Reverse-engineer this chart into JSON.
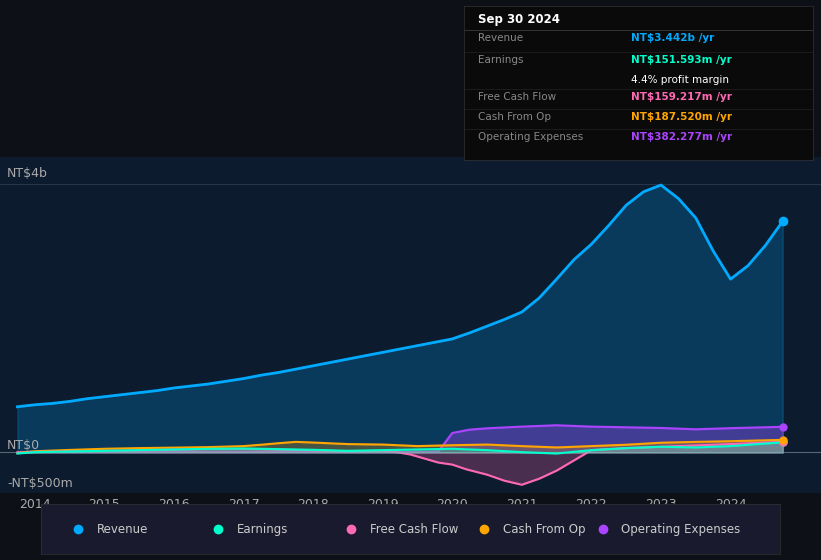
{
  "bg_color": "#0d1117",
  "plot_bg_color": "#0d1b2e",
  "y_label_top": "NT$4b",
  "y_label_zero": "NT$0",
  "y_label_neg": "-NT$500m",
  "x_ticks": [
    2014,
    2015,
    2016,
    2017,
    2018,
    2019,
    2020,
    2021,
    2022,
    2023,
    2024
  ],
  "ylim": [
    -600,
    4400
  ],
  "xlim": [
    2013.5,
    2025.3
  ],
  "revenue_color": "#00aaff",
  "earnings_color": "#00ffcc",
  "fcf_color": "#ff69b4",
  "cashfromop_color": "#ffa500",
  "opex_color": "#aa44ff",
  "legend_items": [
    "Revenue",
    "Earnings",
    "Free Cash Flow",
    "Cash From Op",
    "Operating Expenses"
  ],
  "tooltip": {
    "date": "Sep 30 2024",
    "revenue_label": "Revenue",
    "revenue_value": "NT$3.442b /yr",
    "revenue_color": "#00aaff",
    "earnings_label": "Earnings",
    "earnings_value": "NT$151.593m /yr",
    "earnings_color": "#00ffcc",
    "margin_value": "4.4% profit margin",
    "fcf_label": "Free Cash Flow",
    "fcf_value": "NT$159.217m /yr",
    "fcf_color": "#ff69b4",
    "cashfromop_label": "Cash From Op",
    "cashfromop_value": "NT$187.520m /yr",
    "cashfromop_color": "#ffa500",
    "opex_label": "Operating Expenses",
    "opex_value": "NT$382.277m /yr",
    "opex_color": "#aa44ff"
  },
  "revenue_x": [
    2013.75,
    2014.0,
    2014.25,
    2014.5,
    2014.75,
    2015.0,
    2015.25,
    2015.5,
    2015.75,
    2016.0,
    2016.25,
    2016.5,
    2016.75,
    2017.0,
    2017.25,
    2017.5,
    2017.75,
    2018.0,
    2018.25,
    2018.5,
    2018.75,
    2019.0,
    2019.25,
    2019.5,
    2019.75,
    2020.0,
    2020.25,
    2020.5,
    2020.75,
    2021.0,
    2021.25,
    2021.5,
    2021.75,
    2022.0,
    2022.25,
    2022.5,
    2022.75,
    2023.0,
    2023.25,
    2023.5,
    2023.75,
    2024.0,
    2024.25,
    2024.5,
    2024.75
  ],
  "revenue_y": [
    680,
    710,
    730,
    760,
    800,
    830,
    860,
    890,
    920,
    960,
    990,
    1020,
    1060,
    1100,
    1150,
    1190,
    1240,
    1290,
    1340,
    1390,
    1440,
    1490,
    1540,
    1590,
    1640,
    1690,
    1780,
    1880,
    1980,
    2090,
    2300,
    2580,
    2870,
    3100,
    3380,
    3680,
    3880,
    3980,
    3780,
    3490,
    3000,
    2580,
    2780,
    3080,
    3442
  ],
  "earnings_x": [
    2013.75,
    2014.0,
    2014.5,
    2015.0,
    2015.5,
    2016.0,
    2016.5,
    2017.0,
    2017.5,
    2018.0,
    2018.5,
    2019.0,
    2019.5,
    2020.0,
    2020.5,
    2021.0,
    2021.5,
    2022.0,
    2022.5,
    2023.0,
    2023.5,
    2024.0,
    2024.75
  ],
  "earnings_y": [
    -15,
    5,
    15,
    25,
    35,
    45,
    55,
    60,
    50,
    40,
    25,
    35,
    45,
    55,
    35,
    5,
    -15,
    35,
    65,
    85,
    75,
    95,
    151.593
  ],
  "fcf_x": [
    2013.75,
    2014.0,
    2014.5,
    2015.0,
    2015.5,
    2016.0,
    2016.5,
    2017.0,
    2017.5,
    2018.0,
    2018.5,
    2019.0,
    2019.2,
    2019.4,
    2019.6,
    2019.8,
    2020.0,
    2020.2,
    2020.5,
    2020.75,
    2021.0,
    2021.25,
    2021.5,
    2022.0,
    2022.5,
    2023.0,
    2023.5,
    2024.0,
    2024.75
  ],
  "fcf_y": [
    -8,
    8,
    15,
    22,
    32,
    42,
    50,
    52,
    42,
    32,
    15,
    22,
    5,
    -30,
    -90,
    -150,
    -180,
    -250,
    -330,
    -420,
    -480,
    -390,
    -270,
    35,
    65,
    85,
    105,
    125,
    159.217
  ],
  "cashfromop_x": [
    2013.75,
    2014.0,
    2014.5,
    2015.0,
    2015.5,
    2016.0,
    2016.5,
    2017.0,
    2017.25,
    2017.5,
    2017.75,
    2018.0,
    2018.5,
    2019.0,
    2019.5,
    2020.0,
    2020.5,
    2021.0,
    2021.5,
    2022.0,
    2022.5,
    2023.0,
    2023.5,
    2024.0,
    2024.75
  ],
  "cashfromop_y": [
    -3,
    18,
    38,
    55,
    65,
    72,
    80,
    95,
    115,
    138,
    158,
    148,
    125,
    118,
    95,
    108,
    118,
    95,
    75,
    95,
    115,
    145,
    158,
    168,
    187.52
  ],
  "opex_x": [
    2013.75,
    2014.0,
    2014.5,
    2015.0,
    2015.5,
    2016.0,
    2016.5,
    2017.0,
    2017.5,
    2018.0,
    2018.5,
    2019.0,
    2019.6,
    2019.8,
    2020.0,
    2020.25,
    2020.5,
    2021.0,
    2021.5,
    2022.0,
    2022.5,
    2023.0,
    2023.5,
    2024.0,
    2024.75
  ],
  "opex_y": [
    8,
    8,
    8,
    8,
    8,
    8,
    8,
    8,
    8,
    8,
    8,
    8,
    8,
    15,
    290,
    340,
    360,
    385,
    405,
    385,
    375,
    365,
    345,
    362,
    382.277
  ]
}
